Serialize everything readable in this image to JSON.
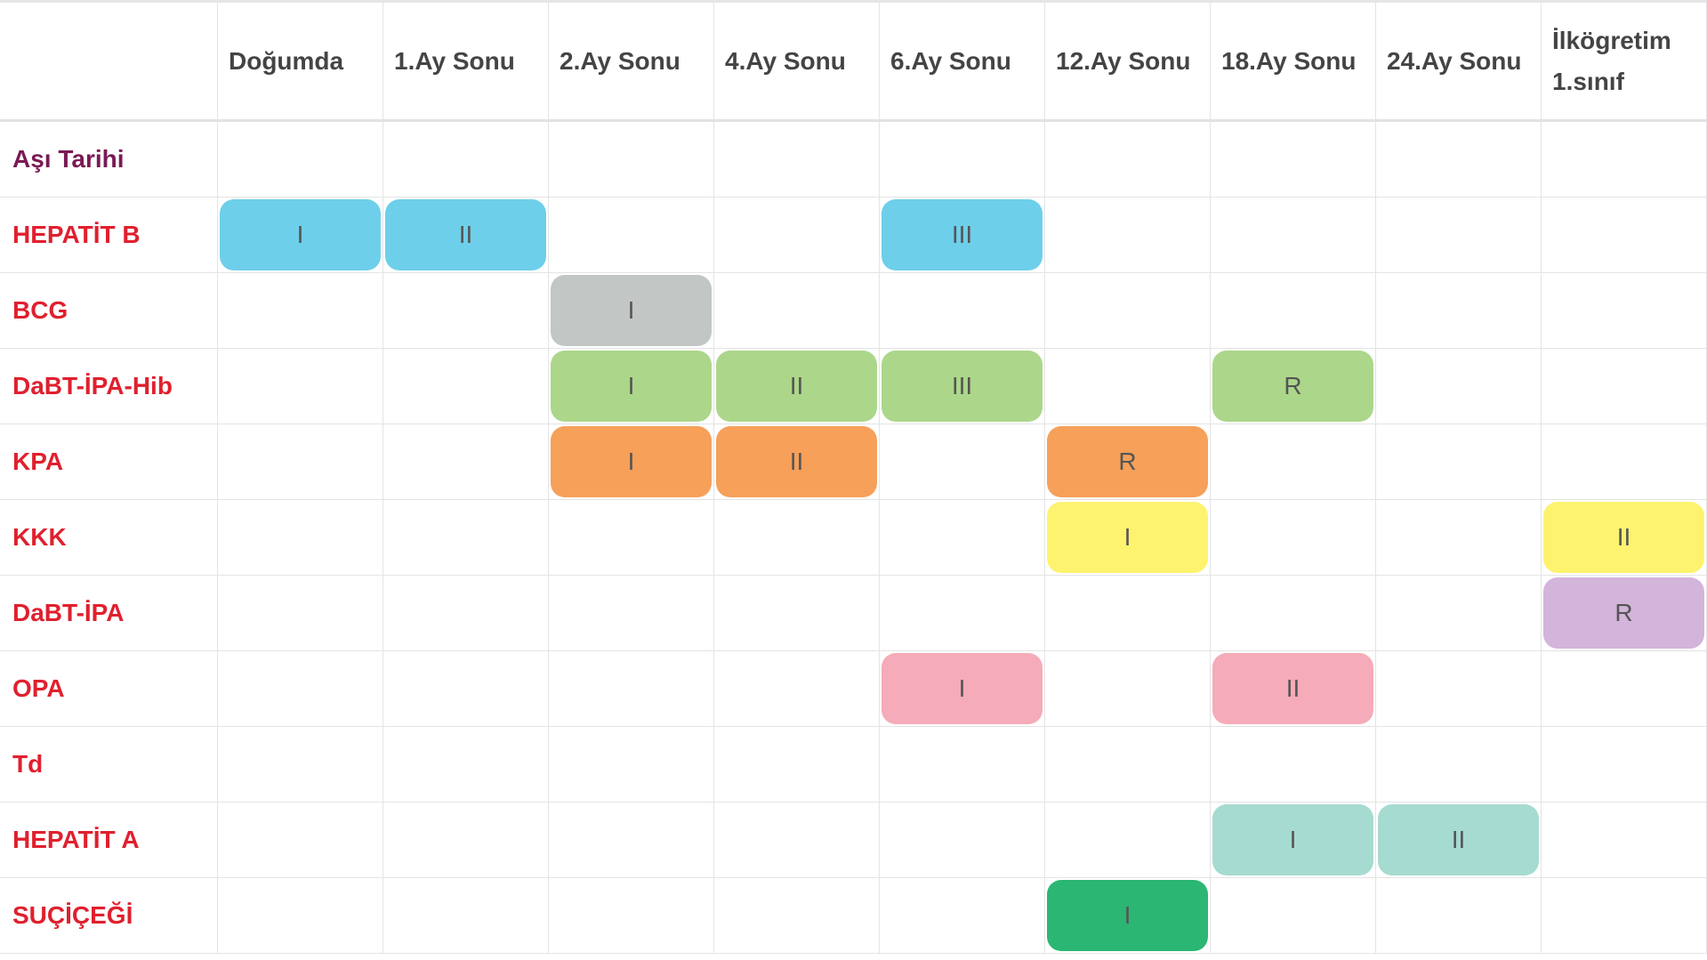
{
  "table": {
    "columns": [
      "Doğumda",
      "1.Ay Sonu",
      "2.Ay Sonu",
      "4.Ay Sonu",
      "6.Ay Sonu",
      "12.Ay Sonu",
      "18.Ay Sonu",
      "24.Ay Sonu",
      "İlkögretim 1.sınıf"
    ],
    "rows": [
      {
        "label": "Aşı Tarihi",
        "label_color": "#7a1a55",
        "color": "#ffffff",
        "cells": [
          null,
          null,
          null,
          null,
          null,
          null,
          null,
          null,
          null
        ]
      },
      {
        "label": "HEPATİT B",
        "label_color": "#e0202e",
        "color": "#6ecfea",
        "cells": [
          "I",
          "II",
          null,
          null,
          "III",
          null,
          null,
          null,
          null
        ]
      },
      {
        "label": "BCG",
        "label_color": "#e0202e",
        "color": "#c2c6c4",
        "cells": [
          null,
          null,
          "I",
          null,
          null,
          null,
          null,
          null,
          null
        ]
      },
      {
        "label": "DaBT-İPA-Hib",
        "label_color": "#e0202e",
        "color": "#acd78a",
        "cells": [
          null,
          null,
          "I",
          "II",
          "III",
          null,
          "R",
          null,
          null
        ]
      },
      {
        "label": "KPA",
        "label_color": "#e0202e",
        "color": "#f6a05a",
        "cells": [
          null,
          null,
          "I",
          "II",
          null,
          "R",
          null,
          null,
          null
        ]
      },
      {
        "label": "KKK",
        "label_color": "#e0202e",
        "color": "#fdf36f",
        "cells": [
          null,
          null,
          null,
          null,
          null,
          "I",
          null,
          null,
          "II"
        ]
      },
      {
        "label": "DaBT-İPA",
        "label_color": "#e0202e",
        "color": "#d3b4db",
        "cells": [
          null,
          null,
          null,
          null,
          null,
          null,
          null,
          null,
          "R"
        ]
      },
      {
        "label": "OPA",
        "label_color": "#e0202e",
        "color": "#f5abb9",
        "cells": [
          null,
          null,
          null,
          null,
          "I",
          null,
          "II",
          null,
          null
        ]
      },
      {
        "label": "Td",
        "label_color": "#e0202e",
        "color": "#f6a05a",
        "cells": [
          null,
          null,
          null,
          null,
          null,
          null,
          null,
          null,
          null
        ]
      },
      {
        "label": "HEPATİT A",
        "label_color": "#e0202e",
        "color": "#a6dbd1",
        "cells": [
          null,
          null,
          null,
          null,
          null,
          null,
          "I",
          "II",
          null
        ]
      },
      {
        "label": "SUÇİÇEĞİ",
        "label_color": "#e0202e",
        "color": "#2bb673",
        "cells": [
          null,
          null,
          null,
          null,
          null,
          "I",
          null,
          null,
          null
        ]
      }
    ]
  }
}
